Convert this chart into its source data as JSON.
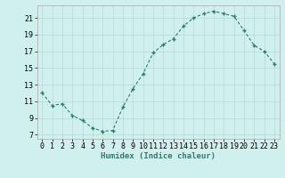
{
  "x": [
    0,
    1,
    2,
    3,
    4,
    5,
    6,
    7,
    8,
    9,
    10,
    11,
    12,
    13,
    14,
    15,
    16,
    17,
    18,
    19,
    20,
    21,
    22,
    23
  ],
  "y": [
    12.0,
    10.5,
    10.7,
    9.3,
    8.7,
    7.8,
    7.4,
    7.5,
    10.3,
    12.5,
    14.3,
    16.8,
    17.8,
    18.5,
    20.0,
    21.0,
    21.5,
    21.8,
    21.5,
    21.2,
    19.5,
    17.7,
    17.0,
    15.5
  ],
  "line_color": "#2e7d6e",
  "marker_color": "#2e7d6e",
  "bg_color": "#cff0ec",
  "grid_color": "#b8d8d4",
  "xlabel": "Humidex (Indice chaleur)",
  "xlim": [
    -0.5,
    23.5
  ],
  "ylim": [
    6.5,
    22.5
  ],
  "yticks": [
    7,
    9,
    11,
    13,
    15,
    17,
    19,
    21
  ],
  "xticks": [
    0,
    1,
    2,
    3,
    4,
    5,
    6,
    7,
    8,
    9,
    10,
    11,
    12,
    13,
    14,
    15,
    16,
    17,
    18,
    19,
    20,
    21,
    22,
    23
  ],
  "xlabel_fontsize": 6.5,
  "tick_fontsize": 6.0
}
